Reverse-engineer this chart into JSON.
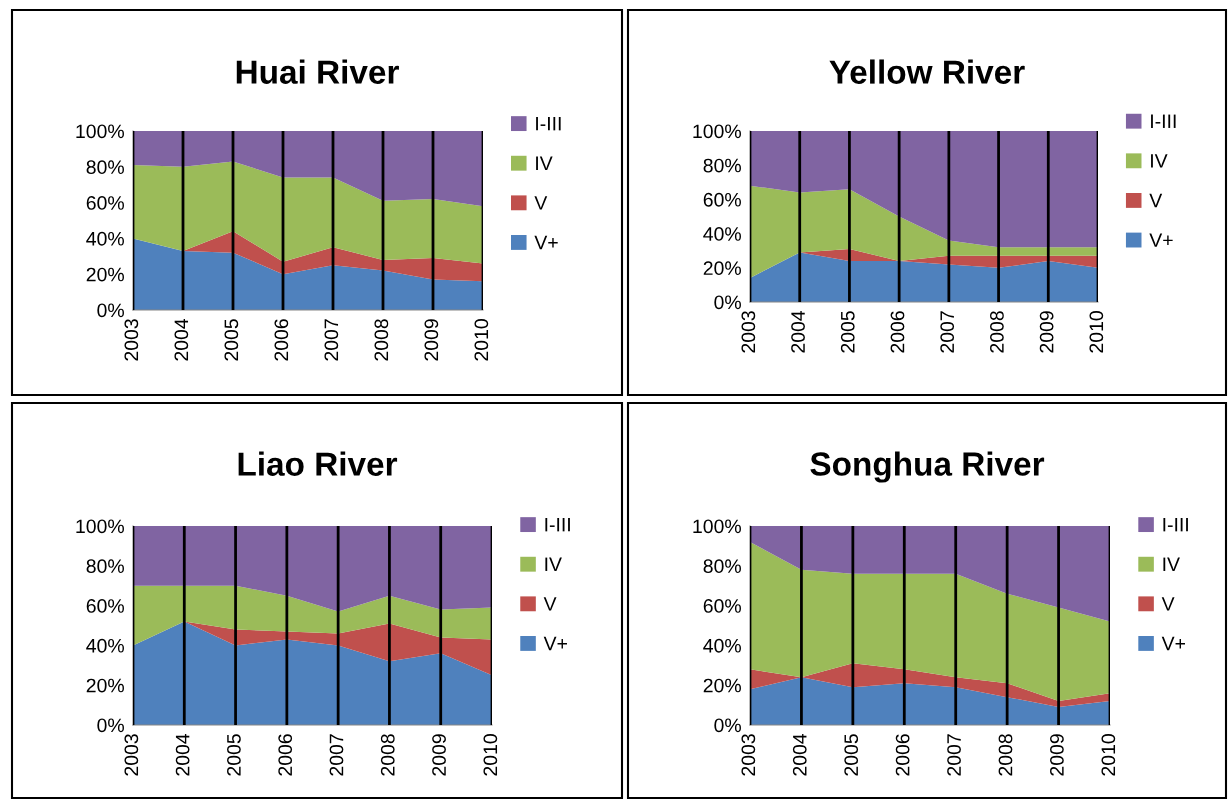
{
  "chart_data": [
    {
      "type": "area",
      "title": "Huai River",
      "stacked": true,
      "grid": "x",
      "legend": "right",
      "categories": [
        "2003",
        "2004",
        "2005",
        "2006",
        "2007",
        "2008",
        "2009",
        "2010"
      ],
      "ylim": [
        0,
        100
      ],
      "yticks": [
        {
          "value": 0,
          "label": "0%"
        },
        {
          "value": 20,
          "label": "20%"
        },
        {
          "value": 40,
          "label": "40%"
        },
        {
          "value": 60,
          "label": "60%"
        },
        {
          "value": 80,
          "label": "80%"
        },
        {
          "value": 100,
          "label": "100%"
        }
      ],
      "series": [
        {
          "name": "V+",
          "color": "#4f81bd",
          "values": [
            40,
            33,
            32,
            20,
            25,
            22,
            17,
            16
          ]
        },
        {
          "name": "V",
          "color": "#c0504d",
          "values": [
            0,
            0,
            12,
            7,
            10,
            6,
            12,
            10
          ]
        },
        {
          "name": "IV",
          "color": "#9bbb59",
          "values": [
            41,
            47,
            39,
            47,
            39,
            33,
            33,
            32
          ]
        },
        {
          "name": "I-III",
          "color": "#8064a2",
          "values": [
            19,
            20,
            17,
            26,
            26,
            39,
            38,
            42
          ]
        }
      ]
    },
    {
      "type": "area",
      "title": "Yellow River",
      "stacked": true,
      "grid": "x",
      "legend": "right",
      "categories": [
        "2003",
        "2004",
        "2005",
        "2006",
        "2007",
        "2008",
        "2009",
        "2010"
      ],
      "ylim": [
        0,
        100
      ],
      "yticks": [
        {
          "value": 0,
          "label": "0%"
        },
        {
          "value": 20,
          "label": "20%"
        },
        {
          "value": 40,
          "label": "40%"
        },
        {
          "value": 60,
          "label": "60%"
        },
        {
          "value": 80,
          "label": "80%"
        },
        {
          "value": 100,
          "label": "100%"
        }
      ],
      "series": [
        {
          "name": "V+",
          "color": "#4f81bd",
          "values": [
            14,
            29,
            24,
            24,
            22,
            20,
            24,
            20
          ]
        },
        {
          "name": "V",
          "color": "#c0504d",
          "values": [
            0,
            0,
            7,
            0,
            5,
            7,
            3,
            7
          ]
        },
        {
          "name": "IV",
          "color": "#9bbb59",
          "values": [
            54,
            35,
            35,
            26,
            9,
            5,
            5,
            5
          ]
        },
        {
          "name": "I-III",
          "color": "#8064a2",
          "values": [
            32,
            36,
            34,
            50,
            64,
            68,
            68,
            68
          ]
        }
      ]
    },
    {
      "type": "area",
      "title": "Liao River",
      "stacked": true,
      "grid": "x",
      "legend": "right",
      "categories": [
        "2003",
        "2004",
        "2005",
        "2006",
        "2007",
        "2008",
        "2009",
        "2010"
      ],
      "ylim": [
        0,
        100
      ],
      "yticks": [
        {
          "value": 0,
          "label": "0%"
        },
        {
          "value": 20,
          "label": "20%"
        },
        {
          "value": 40,
          "label": "40%"
        },
        {
          "value": 60,
          "label": "60%"
        },
        {
          "value": 80,
          "label": "80%"
        },
        {
          "value": 100,
          "label": "100%"
        }
      ],
      "series": [
        {
          "name": "V+",
          "color": "#4f81bd",
          "values": [
            40,
            52,
            40,
            43,
            40,
            32,
            36,
            25
          ]
        },
        {
          "name": "V",
          "color": "#c0504d",
          "values": [
            0,
            0,
            8,
            4,
            6,
            19,
            8,
            18
          ]
        },
        {
          "name": "IV",
          "color": "#9bbb59",
          "values": [
            30,
            18,
            22,
            18,
            11,
            14,
            14,
            16
          ]
        },
        {
          "name": "I-III",
          "color": "#8064a2",
          "values": [
            30,
            30,
            30,
            35,
            43,
            35,
            42,
            41
          ]
        }
      ]
    },
    {
      "type": "area",
      "title": "Songhua River",
      "stacked": true,
      "grid": "x",
      "legend": "right",
      "categories": [
        "2003",
        "2004",
        "2005",
        "2006",
        "2007",
        "2008",
        "2009",
        "2010"
      ],
      "ylim": [
        0,
        100
      ],
      "yticks": [
        {
          "value": 0,
          "label": "0%"
        },
        {
          "value": 20,
          "label": "20%"
        },
        {
          "value": 40,
          "label": "40%"
        },
        {
          "value": 60,
          "label": "60%"
        },
        {
          "value": 80,
          "label": "80%"
        },
        {
          "value": 100,
          "label": "100%"
        }
      ],
      "series": [
        {
          "name": "V+",
          "color": "#4f81bd",
          "values": [
            18,
            24,
            19,
            21,
            19,
            14,
            9,
            12
          ]
        },
        {
          "name": "V",
          "color": "#c0504d",
          "values": [
            10,
            0,
            12,
            7,
            5,
            7,
            3,
            4
          ]
        },
        {
          "name": "IV",
          "color": "#9bbb59",
          "values": [
            64,
            54,
            45,
            48,
            52,
            45,
            47,
            36
          ]
        },
        {
          "name": "I-III",
          "color": "#8064a2",
          "values": [
            8,
            22,
            24,
            24,
            24,
            34,
            41,
            48
          ]
        }
      ]
    }
  ]
}
